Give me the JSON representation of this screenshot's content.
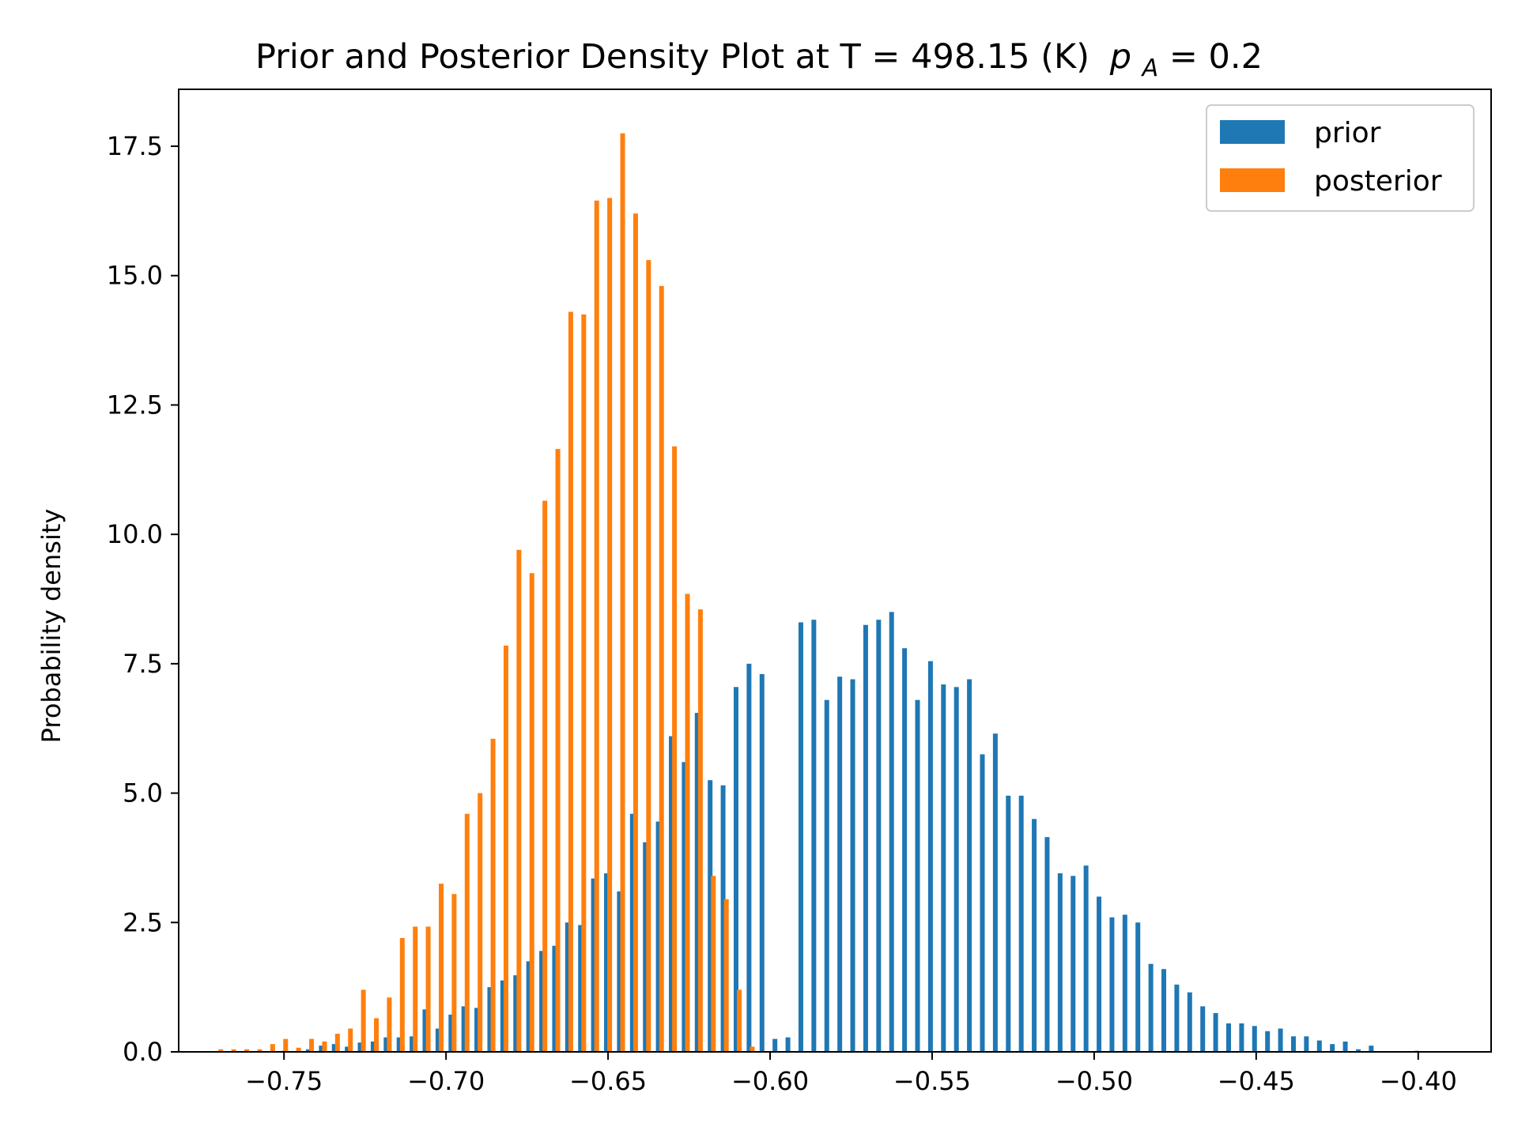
{
  "chart_data": {
    "type": "bar",
    "title": "Prior and Posterior Density Plot at T = 498.15 (K)",
    "title_suffix_var": "p",
    "title_suffix_sub": "A",
    "title_suffix_rest": " = 0.2",
    "xlabel": "",
    "ylabel": "Probability density",
    "xlim": [
      -0.7825,
      -0.3775
    ],
    "ylim": [
      0,
      18.6
    ],
    "grid": false,
    "legend_placement": "top-right",
    "x_ticks": [
      {
        "value": -0.75,
        "label": "−0.75"
      },
      {
        "value": -0.7,
        "label": "−0.70"
      },
      {
        "value": -0.65,
        "label": "−0.65"
      },
      {
        "value": -0.6,
        "label": "−0.60"
      },
      {
        "value": -0.55,
        "label": "−0.55"
      },
      {
        "value": -0.5,
        "label": "−0.50"
      },
      {
        "value": -0.45,
        "label": "−0.45"
      },
      {
        "value": -0.4,
        "label": "−0.40"
      }
    ],
    "y_ticks": [
      {
        "value": 0.0,
        "label": "0.0"
      },
      {
        "value": 2.5,
        "label": "2.5"
      },
      {
        "value": 5.0,
        "label": "5.0"
      },
      {
        "value": 7.5,
        "label": "7.5"
      },
      {
        "value": 10.0,
        "label": "10.0"
      },
      {
        "value": 12.5,
        "label": "12.5"
      },
      {
        "value": 15.0,
        "label": "15.0"
      },
      {
        "value": 17.5,
        "label": "17.5"
      }
    ],
    "series": [
      {
        "name": "prior",
        "color": "#1f77b4",
        "x": [
          -0.75,
          -0.7425,
          -0.7385,
          -0.7345,
          -0.7305,
          -0.7265,
          -0.7225,
          -0.7185,
          -0.7145,
          -0.7105,
          -0.7065,
          -0.7025,
          -0.6985,
          -0.6945,
          -0.6905,
          -0.6865,
          -0.6825,
          -0.6785,
          -0.6745,
          -0.6705,
          -0.6665,
          -0.6625,
          -0.6585,
          -0.6545,
          -0.6505,
          -0.6465,
          -0.6425,
          -0.6385,
          -0.6345,
          -0.6305,
          -0.6265,
          -0.6225,
          -0.6185,
          -0.6145,
          -0.6105,
          -0.6065,
          -0.6025,
          -0.5985,
          -0.5945,
          -0.5905,
          -0.5865,
          -0.5825,
          -0.5785,
          -0.5745,
          -0.5705,
          -0.5665,
          -0.5625,
          -0.5585,
          -0.5545,
          -0.5505,
          -0.5465,
          -0.5425,
          -0.5385,
          -0.5345,
          -0.5305,
          -0.5265,
          -0.5225,
          -0.5185,
          -0.5145,
          -0.5105,
          -0.5065,
          -0.5025,
          -0.4985,
          -0.4945,
          -0.4905,
          -0.4865,
          -0.4825,
          -0.4785,
          -0.4745,
          -0.4705,
          -0.4665,
          -0.4625,
          -0.4585,
          -0.4545,
          -0.4505,
          -0.4465,
          -0.4425,
          -0.4385,
          -0.4345,
          -0.4305,
          -0.4265,
          -0.4225,
          -0.4185,
          -0.4145,
          -0.4005
        ],
        "values": [
          0.02,
          0.05,
          0.12,
          0.15,
          0.1,
          0.18,
          0.2,
          0.28,
          0.28,
          0.3,
          0.82,
          0.45,
          0.72,
          0.88,
          0.85,
          1.25,
          1.38,
          1.48,
          1.75,
          1.95,
          2.05,
          2.5,
          2.45,
          3.35,
          3.45,
          3.1,
          4.6,
          4.05,
          4.45,
          6.1,
          5.6,
          6.55,
          5.25,
          5.15,
          7.05,
          7.5,
          7.3,
          0.25,
          0.28,
          8.3,
          8.35,
          6.8,
          7.25,
          7.2,
          8.25,
          8.35,
          8.5,
          7.8,
          6.8,
          7.55,
          7.1,
          7.05,
          7.2,
          5.75,
          6.15,
          4.95,
          4.95,
          4.5,
          4.15,
          3.45,
          3.4,
          3.6,
          3.0,
          2.6,
          2.65,
          2.5,
          1.7,
          1.6,
          1.3,
          1.15,
          0.88,
          0.75,
          0.55,
          0.55,
          0.5,
          0.4,
          0.45,
          0.3,
          0.3,
          0.22,
          0.15,
          0.2,
          0.05,
          0.12,
          0.02
        ]
      },
      {
        "name": "posterior",
        "color": "#ff7f0e",
        "x": [
          -0.7695,
          -0.7655,
          -0.7615,
          -0.7575,
          -0.7535,
          -0.7495,
          -0.7455,
          -0.7415,
          -0.7375,
          -0.7335,
          -0.7295,
          -0.7255,
          -0.7215,
          -0.7175,
          -0.7135,
          -0.7095,
          -0.7055,
          -0.7015,
          -0.6975,
          -0.6935,
          -0.6895,
          -0.6855,
          -0.6815,
          -0.6775,
          -0.6735,
          -0.6695,
          -0.6655,
          -0.6615,
          -0.6575,
          -0.6535,
          -0.6495,
          -0.6455,
          -0.6415,
          -0.6375,
          -0.6335,
          -0.6295,
          -0.6255,
          -0.6215,
          -0.6175,
          -0.6135,
          -0.6095,
          -0.6055
        ],
        "values": [
          0.05,
          0.05,
          0.05,
          0.05,
          0.15,
          0.25,
          0.08,
          0.25,
          0.2,
          0.35,
          0.45,
          1.2,
          0.65,
          1.05,
          2.2,
          2.42,
          2.42,
          3.25,
          3.05,
          4.6,
          5.0,
          6.05,
          7.85,
          9.7,
          9.25,
          10.65,
          11.65,
          14.3,
          14.25,
          16.45,
          16.5,
          17.75,
          16.2,
          15.3,
          14.8,
          11.7,
          8.85,
          8.55,
          3.4,
          2.95,
          1.2,
          0.1
        ]
      }
    ]
  }
}
